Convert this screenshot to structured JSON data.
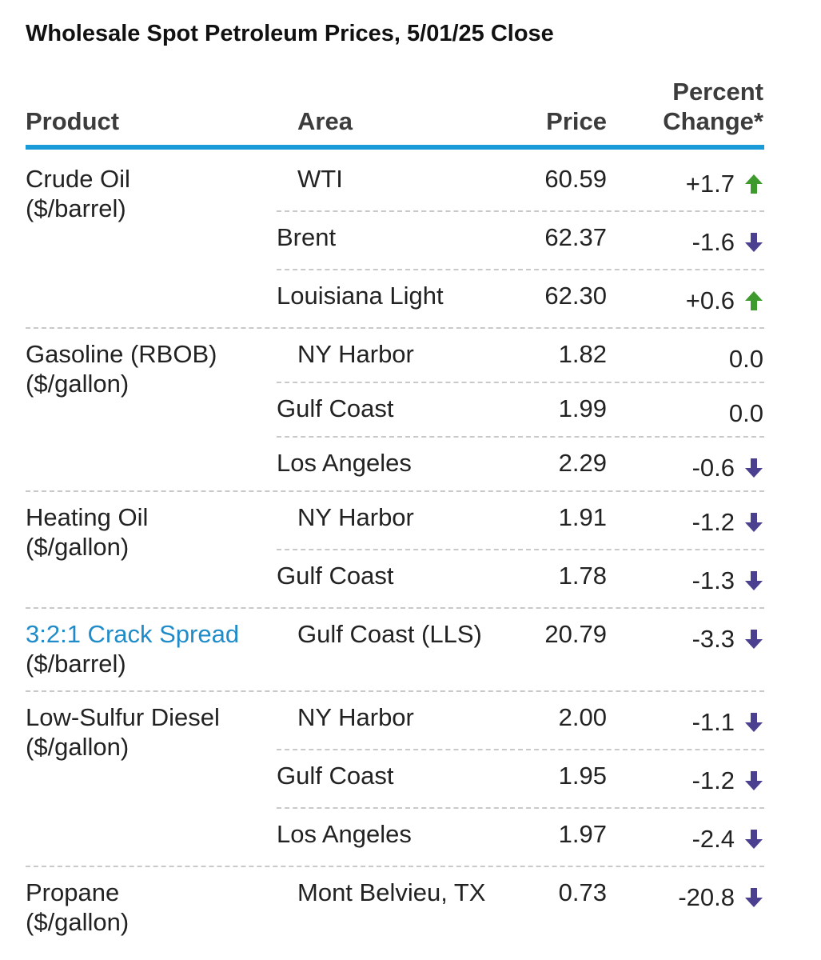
{
  "title": "Wholesale Spot Petroleum Prices, 5/01/25 Close",
  "headers": {
    "product": "Product",
    "area": "Area",
    "price": "Price",
    "pct_line1": "Percent",
    "pct_line2": "Change*"
  },
  "colors": {
    "accent_rule": "#1b9ad8",
    "up": "#3f9a2e",
    "down": "#4b3f8f",
    "link": "#1f8cc9"
  },
  "groups": [
    {
      "product": "Crude Oil",
      "unit": "($/barrel)",
      "rows": [
        {
          "area": "WTI",
          "price": "60.59",
          "change": "+1.7",
          "direction": "up"
        },
        {
          "area": "Brent",
          "price": "62.37",
          "change": "-1.6",
          "direction": "down"
        },
        {
          "area": "Louisiana Light",
          "price": "62.30",
          "change": "+0.6",
          "direction": "up"
        }
      ]
    },
    {
      "product": "Gasoline (RBOB)",
      "unit": "($/gallon)",
      "rows": [
        {
          "area": "NY Harbor",
          "price": "1.82",
          "change": "0.0",
          "direction": "none"
        },
        {
          "area": "Gulf Coast",
          "price": "1.99",
          "change": "0.0",
          "direction": "none"
        },
        {
          "area": "Los Angeles",
          "price": "2.29",
          "change": "-0.6",
          "direction": "down"
        }
      ]
    },
    {
      "product": "Heating Oil",
      "unit": "($/gallon)",
      "rows": [
        {
          "area": "NY Harbor",
          "price": "1.91",
          "change": "-1.2",
          "direction": "down"
        },
        {
          "area": "Gulf Coast",
          "price": "1.78",
          "change": "-1.3",
          "direction": "down"
        }
      ]
    },
    {
      "product": "3:2:1 Crack Spread",
      "unit": "($/barrel)",
      "link": true,
      "rows": [
        {
          "area": "Gulf Coast (LLS)",
          "price": "20.79",
          "change": "-3.3",
          "direction": "down"
        }
      ]
    },
    {
      "product": "Low-Sulfur Diesel",
      "unit": "($/gallon)",
      "rows": [
        {
          "area": "NY Harbor",
          "price": "2.00",
          "change": "-1.1",
          "direction": "down"
        },
        {
          "area": "Gulf Coast",
          "price": "1.95",
          "change": "-1.2",
          "direction": "down"
        },
        {
          "area": "Los Angeles",
          "price": "1.97",
          "change": "-2.4",
          "direction": "down"
        }
      ]
    },
    {
      "product": "Propane",
      "unit": "($/gallon)",
      "rows": [
        {
          "area": "Mont Belvieu, TX",
          "price": "0.73",
          "change": "-20.8",
          "direction": "down"
        }
      ]
    }
  ]
}
